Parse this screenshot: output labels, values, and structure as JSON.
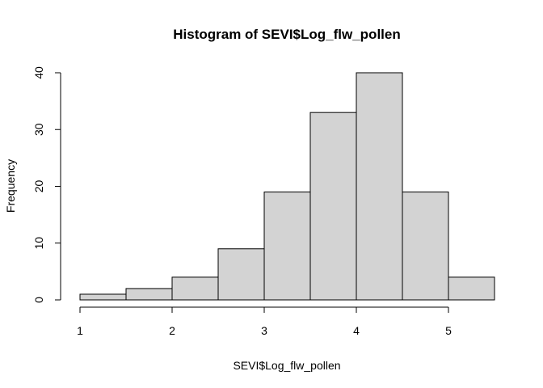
{
  "chart_data": {
    "type": "bar",
    "subtype": "histogram",
    "title": "Histogram of SEVI$Log_flw_pollen",
    "xlabel": "SEVI$Log_flw_pollen",
    "ylabel": "Frequency",
    "bin_edges": [
      1.0,
      1.5,
      2.0,
      2.5,
      3.0,
      3.5,
      4.0,
      4.5,
      5.0,
      5.5
    ],
    "values": [
      1,
      2,
      4,
      9,
      19,
      33,
      40,
      19,
      4
    ],
    "xlim": [
      1.0,
      5.5
    ],
    "ylim": [
      0,
      40
    ],
    "x_ticks": [
      1,
      2,
      3,
      4,
      5
    ],
    "y_ticks": [
      0,
      10,
      20,
      30,
      40
    ],
    "grid": false,
    "bar_fill": "#d3d3d3",
    "bar_stroke": "#000000"
  }
}
